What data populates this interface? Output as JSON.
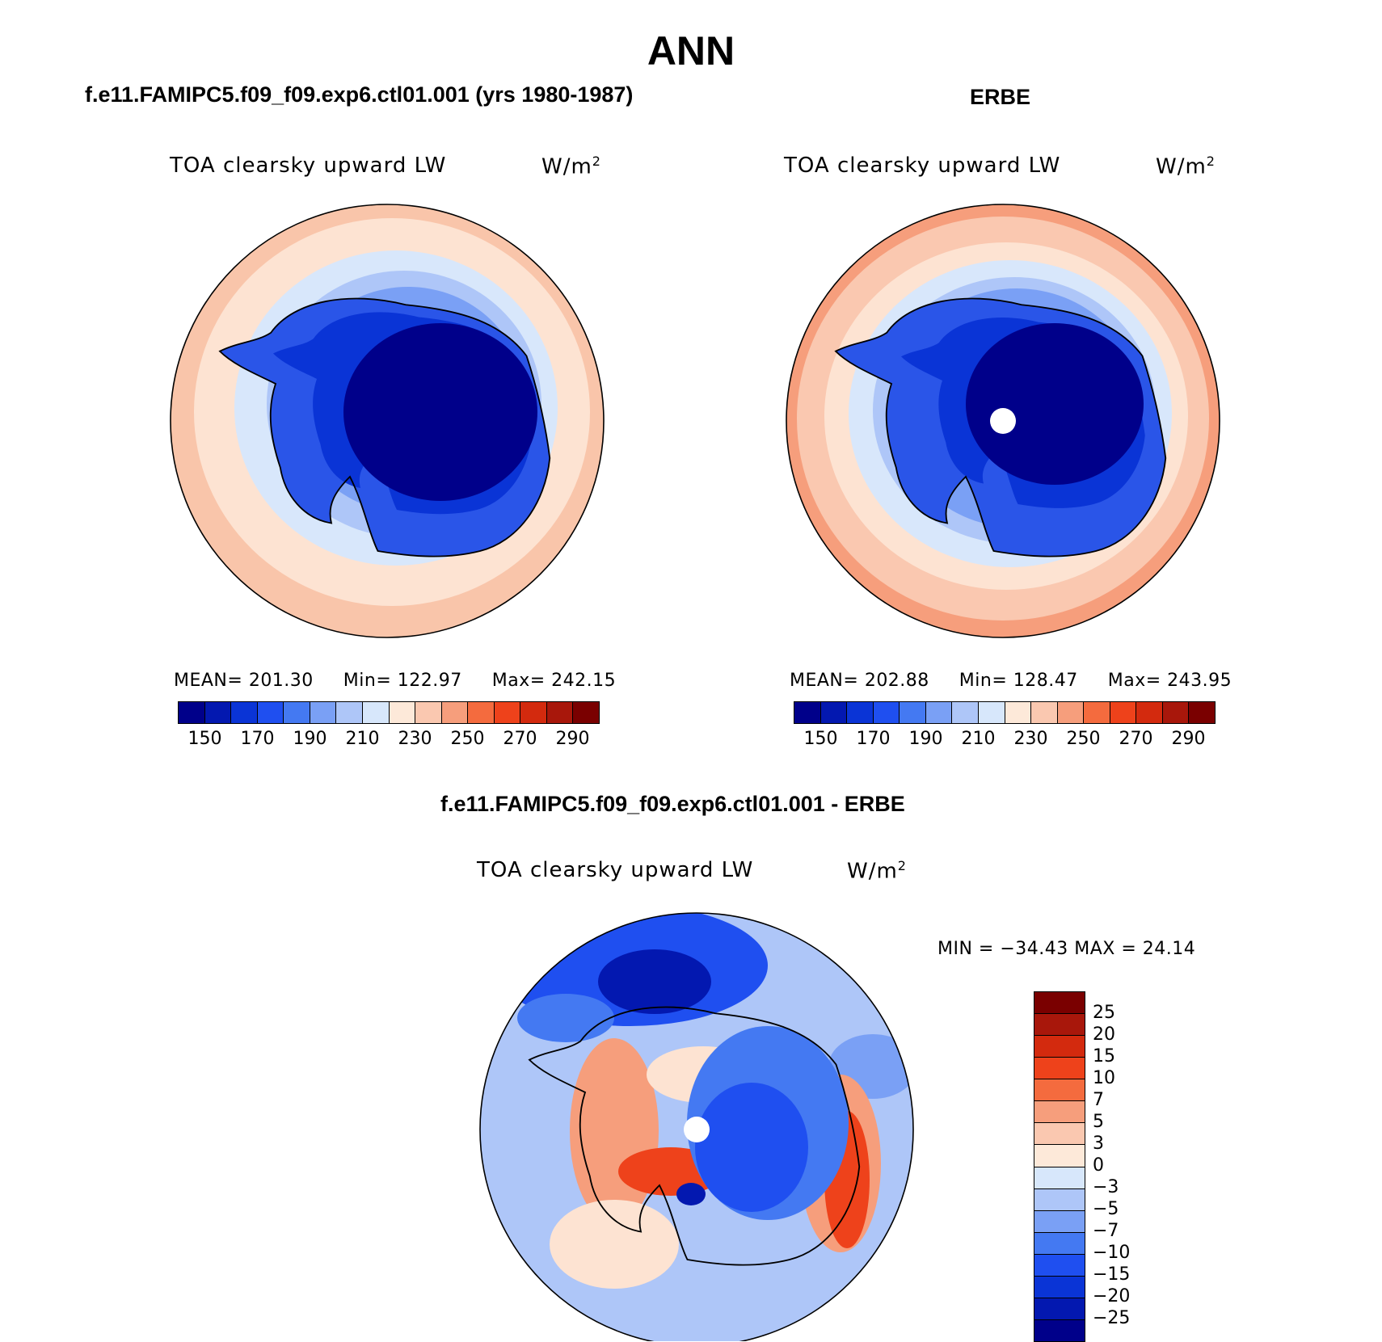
{
  "header": {
    "title": "ANN",
    "left_subtitle": "f.e11.FAMIPC5.f09_f09.exp6.ctl01.001 (yrs 1980-1987)",
    "right_subtitle": "ERBE",
    "bottom_subtitle": "f.e11.FAMIPC5.f09_f09.exp6.ctl01.001 - ERBE"
  },
  "panels": {
    "left": {
      "variable": "TOA clearsky upward LW",
      "units_base": "W/m",
      "units_exp": "2",
      "mean_label": "MEAN= 201.30",
      "min_label": "Min= 122.97",
      "max_label": "Max= 242.15"
    },
    "right": {
      "variable": "TOA clearsky upward LW",
      "units_base": "W/m",
      "units_exp": "2",
      "mean_label": "MEAN= 202.88",
      "min_label": "Min= 128.47",
      "max_label": "Max= 243.95"
    },
    "diff": {
      "variable": "TOA clearsky upward LW",
      "units_base": "W/m",
      "units_exp": "2",
      "minmax_label": "MIN = −34.43 MAX =  24.14"
    }
  },
  "colorbars": {
    "abs": {
      "colors": [
        "#00008a",
        "#0318b0",
        "#0a34d6",
        "#1f4ff0",
        "#4479f2",
        "#7aa0f5",
        "#aec6f8",
        "#d7e7fb",
        "#fde9d9",
        "#fac8b0",
        "#f69e7c",
        "#f46b3e",
        "#ee421b",
        "#d32a0e",
        "#a8170b",
        "#7a0000"
      ],
      "tick_labels": [
        "150",
        "170",
        "190",
        "210",
        "230",
        "250",
        "270",
        "290"
      ]
    },
    "diff": {
      "colors": [
        "#00008a",
        "#0318b0",
        "#0a34d6",
        "#1f4ff0",
        "#4479f2",
        "#7aa0f5",
        "#aec6f8",
        "#d7e7fb",
        "#fde9d9",
        "#fac8b0",
        "#f69e7c",
        "#f46b3e",
        "#ee421b",
        "#d32a0e",
        "#a8170b",
        "#7a0000"
      ],
      "tick_labels": [
        "25",
        "20",
        "15",
        "10",
        "7",
        "5",
        "3",
        "0",
        "−3",
        "−5",
        "−7",
        "−10",
        "−15",
        "−20",
        "−25"
      ]
    }
  }
}
